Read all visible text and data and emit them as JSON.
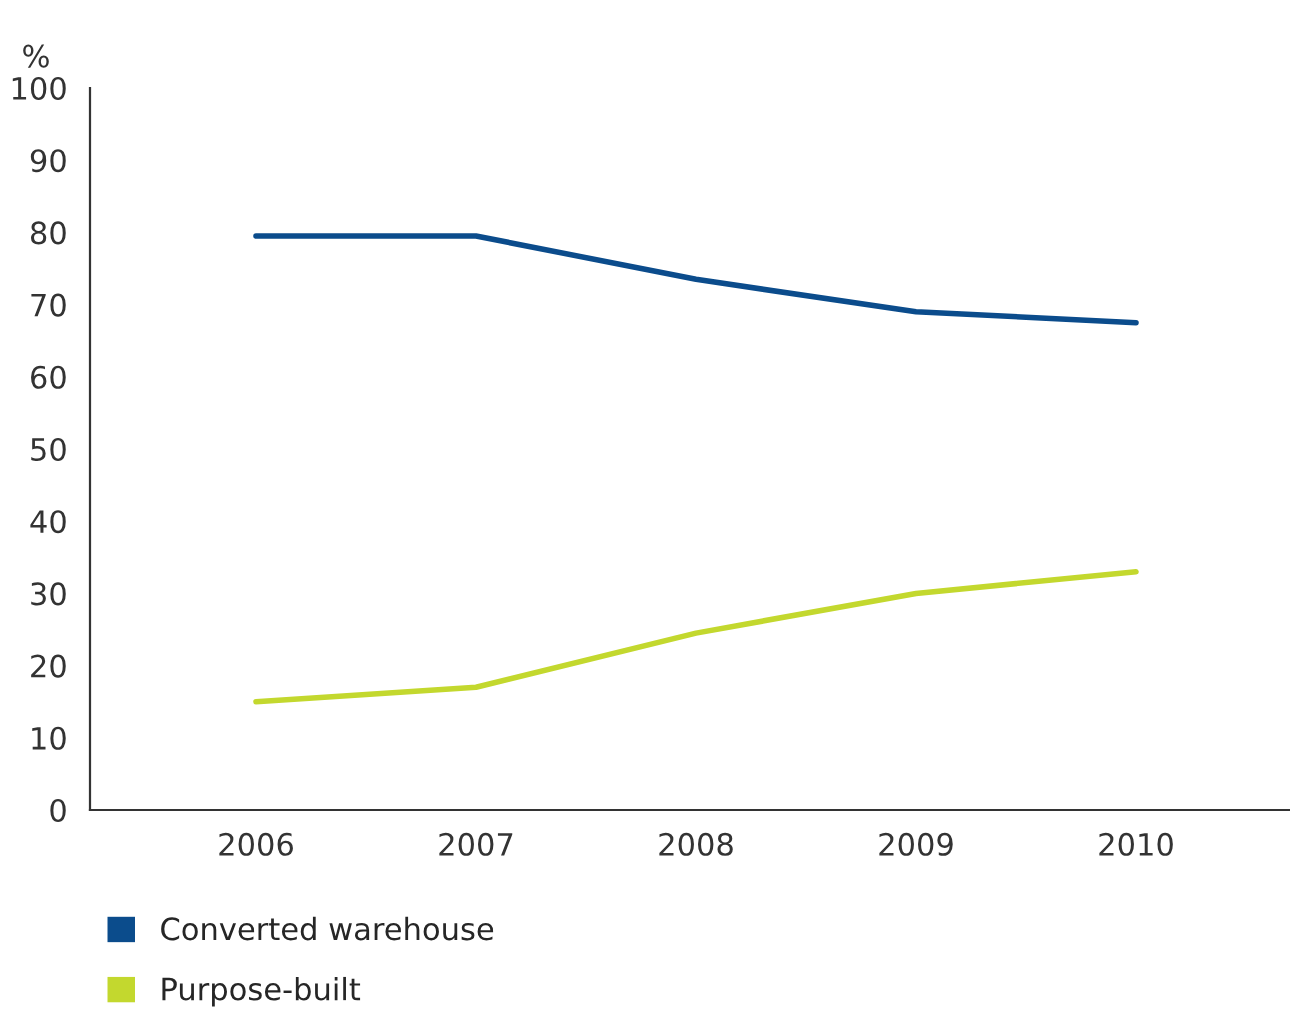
{
  "chart_data": {
    "type": "line",
    "ylabel": "%",
    "categories": [
      "2006",
      "2007",
      "2008",
      "2009",
      "2010"
    ],
    "series": [
      {
        "name": "Converted warehouse",
        "color": "#0b4c8c",
        "values": [
          79.5,
          79.5,
          73.5,
          69,
          67.5
        ]
      },
      {
        "name": "Purpose-built",
        "color": "#c3d82e",
        "values": [
          15,
          17,
          24.5,
          30,
          33
        ]
      }
    ],
    "ylim": [
      0,
      100
    ],
    "yticks": [
      0,
      10,
      20,
      30,
      40,
      50,
      60,
      70,
      80,
      90,
      100
    ],
    "grid": false,
    "legend": "bottom left",
    "marker": "none",
    "line_style": "solid"
  }
}
